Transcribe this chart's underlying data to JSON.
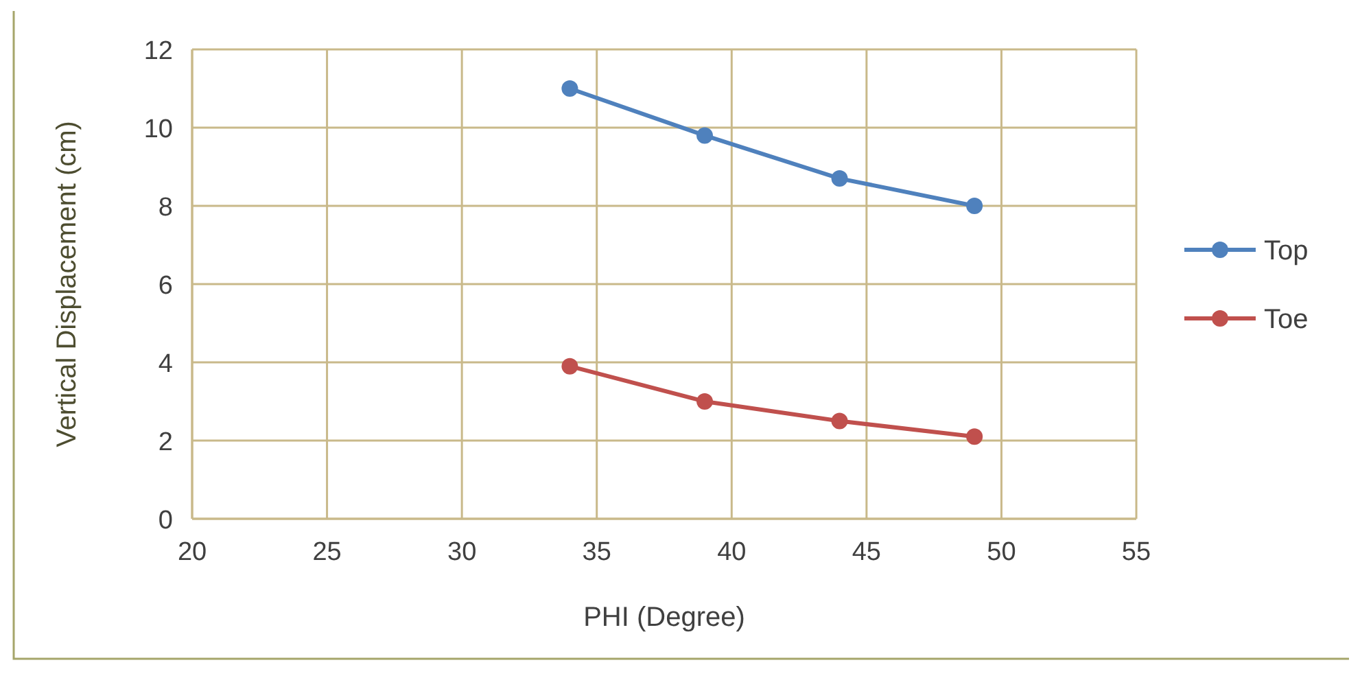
{
  "chart_data": {
    "type": "line",
    "xlabel": "PHI (Degree)",
    "ylabel": "Vertical Displacement (cm)",
    "x": [
      34,
      39,
      44,
      49
    ],
    "series": [
      {
        "name": "Top",
        "color": "#4f81bd",
        "values": [
          11,
          9.8,
          8.7,
          8.0
        ]
      },
      {
        "name": "Toe",
        "color": "#c0504d",
        "values": [
          3.9,
          3.0,
          2.5,
          2.1
        ]
      }
    ],
    "xlim": [
      20,
      55
    ],
    "xticks": [
      20,
      25,
      30,
      35,
      40,
      45,
      50,
      55
    ],
    "ylim": [
      0,
      12
    ],
    "yticks": [
      0,
      2,
      4,
      6,
      8,
      10,
      12
    ],
    "grid": true,
    "legend": "right",
    "marker": "circle",
    "line_style": "solid"
  }
}
